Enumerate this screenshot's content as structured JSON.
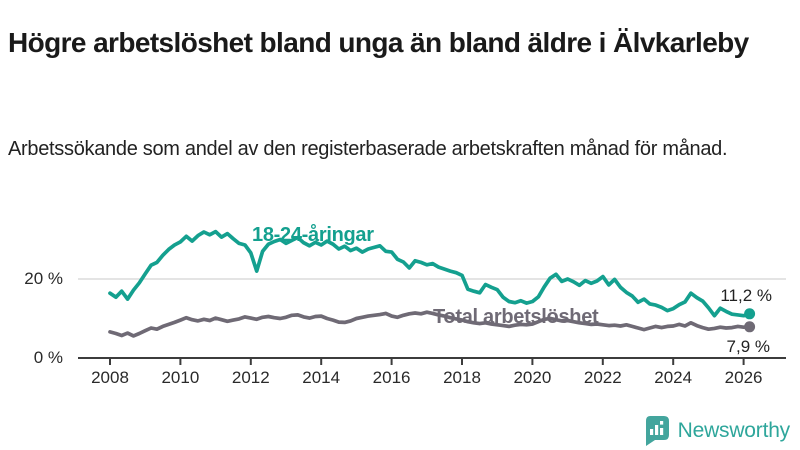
{
  "header": {
    "title": "Högre arbetslöshet bland unga än bland äldre i Älvkarleby",
    "subtitle": "Arbetssökande som andel av den registerbaserade arbetskraften månad för månad."
  },
  "chart_data": {
    "type": "line",
    "title": "Högre arbetslöshet bland unga än bland äldre i Älvkarleby",
    "xlabel": "",
    "ylabel": "Arbetssökande som andel av den registerbaserade arbetskraften",
    "x_unit": "year (monthly data)",
    "x_start": 2008.0,
    "x_step_years": 0.1667,
    "xlim": [
      2007.0,
      2027.3
    ],
    "ylim": [
      0,
      34
    ],
    "grid": "single horizontal gridline at 20 %",
    "legend_position": "labels drawn on lines",
    "x_tick_labels": [
      "2008",
      "2010",
      "2012",
      "2014",
      "2016",
      "2018",
      "2020",
      "2022",
      "2024",
      "2026"
    ],
    "x_tick_years": [
      2008,
      2010,
      2012,
      2014,
      2016,
      2018,
      2020,
      2022,
      2024,
      2026
    ],
    "y_ticks": [
      {
        "value": 0,
        "label": "0 %"
      },
      {
        "value": 20,
        "label": "20 %"
      }
    ],
    "series": [
      {
        "name": "18-24-åringar",
        "color": "#14A08F",
        "end_value": 11.2,
        "end_label": "11,2 %",
        "values": [
          16.4,
          15.4,
          16.9,
          14.9,
          17.2,
          19.0,
          21.3,
          23.5,
          24.2,
          26.0,
          27.5,
          28.6,
          29.4,
          30.8,
          29.6,
          31.0,
          31.9,
          31.2,
          32.0,
          30.6,
          31.5,
          30.2,
          29.0,
          28.6,
          26.6,
          22.0,
          27.0,
          28.8,
          29.5,
          30.0,
          29.0,
          29.8,
          30.5,
          29.2,
          28.4,
          29.3,
          28.6,
          29.6,
          28.8,
          27.6,
          28.3,
          27.2,
          27.8,
          26.8,
          27.6,
          28.0,
          28.4,
          27.0,
          26.8,
          25.0,
          24.3,
          22.8,
          24.6,
          24.2,
          23.6,
          23.9,
          23.0,
          22.5,
          22.0,
          21.6,
          20.9,
          17.4,
          16.9,
          16.5,
          18.6,
          17.9,
          17.3,
          15.4,
          14.3,
          14.0,
          14.5,
          13.9,
          14.3,
          15.5,
          18.0,
          20.2,
          21.2,
          19.4,
          20.0,
          19.3,
          18.4,
          19.6,
          18.9,
          19.5,
          20.6,
          18.5,
          19.9,
          17.9,
          16.6,
          15.7,
          14.1,
          14.9,
          13.7,
          13.4,
          12.8,
          12.0,
          12.5,
          13.5,
          14.2,
          16.4,
          15.3,
          14.4,
          12.7,
          10.7,
          12.6,
          11.8,
          11.1,
          10.9,
          10.7,
          11.2
        ]
      },
      {
        "name": "Total arbetslöshet",
        "color": "#6F6A75",
        "end_value": 7.9,
        "end_label": "7,9 %",
        "values": [
          6.6,
          6.2,
          5.7,
          6.3,
          5.6,
          6.2,
          6.9,
          7.6,
          7.3,
          8.0,
          8.5,
          9.0,
          9.6,
          10.2,
          9.7,
          9.4,
          9.8,
          9.5,
          10.1,
          9.7,
          9.3,
          9.6,
          9.9,
          10.4,
          10.1,
          9.8,
          10.3,
          10.5,
          10.2,
          10.0,
          10.3,
          10.8,
          10.9,
          10.4,
          10.1,
          10.5,
          10.6,
          10.0,
          9.6,
          9.1,
          9.0,
          9.4,
          10.0,
          10.3,
          10.6,
          10.8,
          11.0,
          11.3,
          10.6,
          10.3,
          10.8,
          11.2,
          11.4,
          11.2,
          11.6,
          11.3,
          10.9,
          10.6,
          10.2,
          9.9,
          9.6,
          9.2,
          8.9,
          8.7,
          8.9,
          8.6,
          8.4,
          8.2,
          8.0,
          8.3,
          8.5,
          8.4,
          8.6,
          9.2,
          9.8,
          10.0,
          9.7,
          9.4,
          9.5,
          9.2,
          8.9,
          8.7,
          8.5,
          8.6,
          8.4,
          8.2,
          8.3,
          8.1,
          8.4,
          8.0,
          7.6,
          7.2,
          7.6,
          8.0,
          7.7,
          8.0,
          8.1,
          8.5,
          8.1,
          8.9,
          8.2,
          7.7,
          7.3,
          7.5,
          7.8,
          7.6,
          7.7,
          8.0,
          7.8,
          7.9
        ]
      }
    ]
  },
  "colors": {
    "young_line": "#14A08F",
    "total_line": "#6F6A75",
    "axis": "#3c3c3c",
    "gridline": "#dcdcdc",
    "text": "#222222",
    "brand": "#2EA69B"
  },
  "footer": {
    "brand": "Newsworthy"
  }
}
